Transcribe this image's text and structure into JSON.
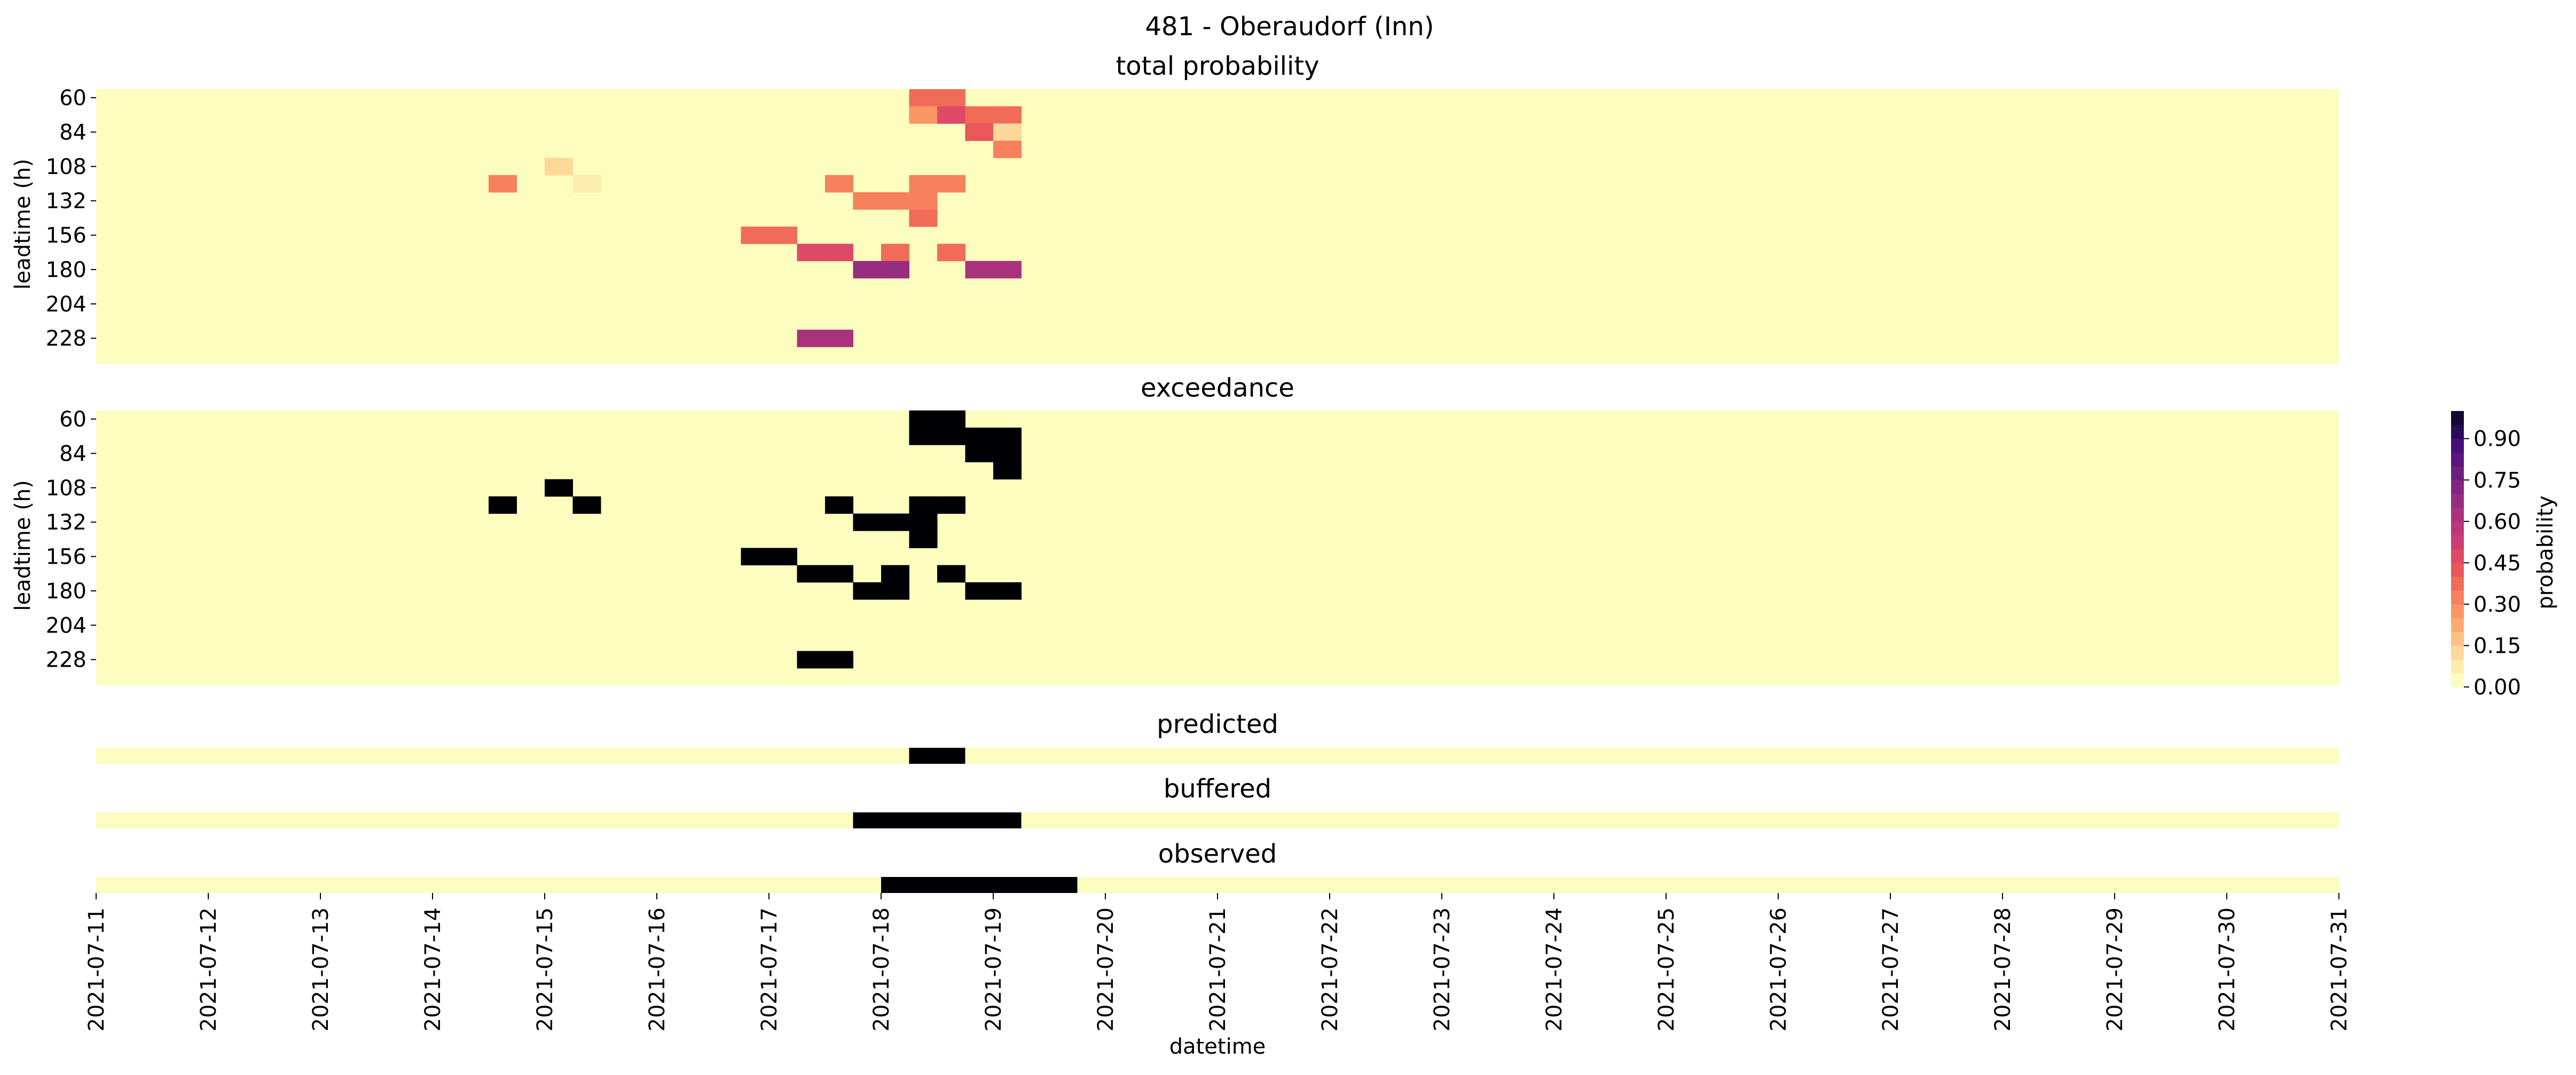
{
  "figure": {
    "title": "481 - Oberaudorf (Inn)",
    "xlabel": "datetime",
    "colorbar_label": "probability",
    "colorbar_ticks": [
      "0.00",
      "0.15",
      "0.30",
      "0.45",
      "0.60",
      "0.75",
      "0.90"
    ]
  },
  "chart_data": [
    {
      "type": "heatmap",
      "title": "total probability",
      "ylabel": "leadtime (h)",
      "yticks": [
        "60",
        "84",
        "108",
        "132",
        "156",
        "180",
        "204",
        "228"
      ],
      "x_start": "2021-07-11 00:00",
      "x_end": "2021-07-31 00:00",
      "step_hours": 6,
      "leadtimes": [
        60,
        72,
        84,
        96,
        108,
        120,
        132,
        144,
        156,
        168,
        180,
        192,
        204,
        216,
        228,
        240
      ],
      "cells": [
        {
          "t": "2021-07-18 06:00",
          "lead": 60,
          "p": 0.35
        },
        {
          "t": "2021-07-18 12:00",
          "lead": 60,
          "p": 0.35
        },
        {
          "t": "2021-07-18 06:00",
          "lead": 72,
          "p": 0.25
        },
        {
          "t": "2021-07-18 12:00",
          "lead": 72,
          "p": 0.45
        },
        {
          "t": "2021-07-18 18:00",
          "lead": 72,
          "p": 0.35
        },
        {
          "t": "2021-07-19 00:00",
          "lead": 72,
          "p": 0.35
        },
        {
          "t": "2021-07-18 18:00",
          "lead": 84,
          "p": 0.4
        },
        {
          "t": "2021-07-19 00:00",
          "lead": 84,
          "p": 0.1
        },
        {
          "t": "2021-07-19 00:00",
          "lead": 96,
          "p": 0.3
        },
        {
          "t": "2021-07-15 00:00",
          "lead": 108,
          "p": 0.1
        },
        {
          "t": "2021-07-14 12:00",
          "lead": 120,
          "p": 0.3
        },
        {
          "t": "2021-07-15 06:00",
          "lead": 120,
          "p": 0.08
        },
        {
          "t": "2021-07-17 12:00",
          "lead": 120,
          "p": 0.3
        },
        {
          "t": "2021-07-18 06:00",
          "lead": 120,
          "p": 0.3
        },
        {
          "t": "2021-07-18 12:00",
          "lead": 120,
          "p": 0.3
        },
        {
          "t": "2021-07-17 18:00",
          "lead": 132,
          "p": 0.3
        },
        {
          "t": "2021-07-18 00:00",
          "lead": 132,
          "p": 0.3
        },
        {
          "t": "2021-07-18 06:00",
          "lead": 132,
          "p": 0.3
        },
        {
          "t": "2021-07-18 06:00",
          "lead": 144,
          "p": 0.35
        },
        {
          "t": "2021-07-16 18:00",
          "lead": 156,
          "p": 0.35
        },
        {
          "t": "2021-07-17 00:00",
          "lead": 156,
          "p": 0.35
        },
        {
          "t": "2021-07-17 06:00",
          "lead": 168,
          "p": 0.45
        },
        {
          "t": "2021-07-17 12:00",
          "lead": 168,
          "p": 0.45
        },
        {
          "t": "2021-07-18 00:00",
          "lead": 168,
          "p": 0.35
        },
        {
          "t": "2021-07-18 12:00",
          "lead": 168,
          "p": 0.35
        },
        {
          "t": "2021-07-17 18:00",
          "lead": 180,
          "p": 0.65
        },
        {
          "t": "2021-07-18 00:00",
          "lead": 180,
          "p": 0.65
        },
        {
          "t": "2021-07-18 18:00",
          "lead": 180,
          "p": 0.6
        },
        {
          "t": "2021-07-19 00:00",
          "lead": 180,
          "p": 0.6
        },
        {
          "t": "2021-07-17 06:00",
          "lead": 228,
          "p": 0.6
        },
        {
          "t": "2021-07-17 12:00",
          "lead": 228,
          "p": 0.6
        }
      ]
    },
    {
      "type": "heatmap",
      "title": "exceedance",
      "ylabel": "leadtime (h)",
      "yticks": [
        "60",
        "84",
        "108",
        "132",
        "156",
        "180",
        "204",
        "228"
      ],
      "note_values": "binary 0/1; 1 where total probability > 0"
    },
    {
      "type": "heatmap",
      "title": "predicted",
      "periods": [
        {
          "start": "2021-07-18 06:00",
          "end": "2021-07-18 12:00"
        }
      ]
    },
    {
      "type": "heatmap",
      "title": "buffered",
      "periods": [
        {
          "start": "2021-07-17 18:00",
          "end": "2021-07-19 00:00"
        }
      ]
    },
    {
      "type": "heatmap",
      "title": "observed",
      "periods": [
        {
          "start": "2021-07-18 00:00",
          "end": "2021-07-19 12:00"
        }
      ],
      "xticks": [
        "2021-07-11",
        "2021-07-12",
        "2021-07-13",
        "2021-07-14",
        "2021-07-15",
        "2021-07-16",
        "2021-07-17",
        "2021-07-18",
        "2021-07-19",
        "2021-07-20",
        "2021-07-21",
        "2021-07-22",
        "2021-07-23",
        "2021-07-24",
        "2021-07-25",
        "2021-07-26",
        "2021-07-27",
        "2021-07-28",
        "2021-07-29",
        "2021-07-30",
        "2021-07-31"
      ]
    }
  ],
  "colors": {
    "colormap": "magma_r",
    "background": "#fcfdbf",
    "on": "#000004"
  }
}
